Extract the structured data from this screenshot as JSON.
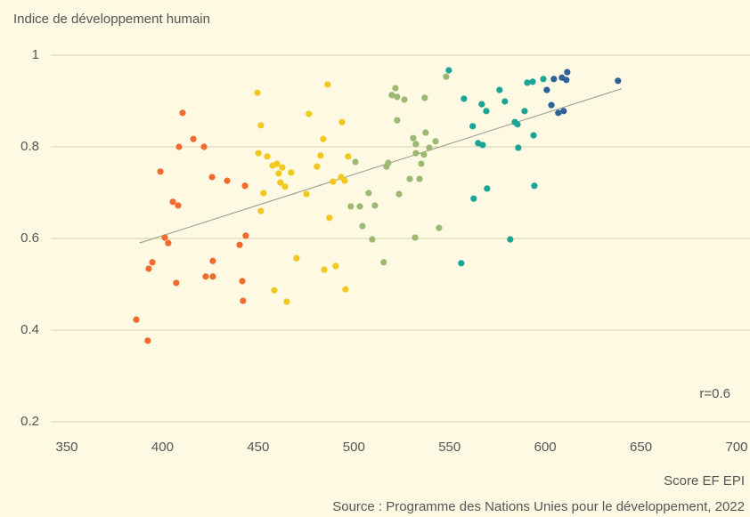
{
  "chart_data": {
    "type": "scatter",
    "title": "Indice de développement humain",
    "x_label": "Score EF EPI",
    "source": "Source : Programme des Nations Unies pour le développement, 2022",
    "annotation": "r=0.6",
    "xlim": [
      350,
      700
    ],
    "ylim": [
      0.2,
      1
    ],
    "xticks": [
      350,
      400,
      450,
      500,
      550,
      600,
      650,
      700
    ],
    "yticks": [
      0.2,
      0.4,
      0.6,
      0.8,
      1
    ],
    "grid": true,
    "trendline": {
      "x": [
        388,
        640
      ],
      "y": [
        0.59,
        0.927
      ],
      "color": "#9a9a8a"
    },
    "series": [
      {
        "color": "#f26b2e",
        "x": [
          386.3,
          392.3,
          392.8,
          394.7,
          398.9,
          401.2,
          403,
          405.4,
          407.2,
          408.2,
          408.6,
          410.5,
          416.1,
          421.7,
          422.6,
          425.9,
          426.3,
          426.3,
          433.8,
          440.3,
          441.7,
          442.1,
          443.1,
          443.5
        ],
        "values": [
          0.423,
          0.377,
          0.534,
          0.548,
          0.746,
          0.602,
          0.59,
          0.68,
          0.503,
          0.672,
          0.8,
          0.874,
          0.817,
          0.8,
          0.517,
          0.734,
          0.551,
          0.517,
          0.726,
          0.586,
          0.507,
          0.464,
          0.715,
          0.606
        ]
      },
      {
        "color": "#f2c81e",
        "x": [
          449.6,
          450.1,
          451.4,
          451.4,
          452.8,
          454.7,
          457.5,
          458.4,
          459.8,
          460.7,
          461.6,
          462.6,
          464,
          464.9,
          467.2,
          470,
          475.2,
          476.5,
          480.7,
          482.6,
          484,
          484.5,
          486.3,
          487.2,
          489.1,
          490.5,
          493.3,
          493.8,
          495.2,
          495.6,
          497
        ],
        "values": [
          0.918,
          0.786,
          0.847,
          0.66,
          0.699,
          0.779,
          0.759,
          0.487,
          0.763,
          0.742,
          0.722,
          0.755,
          0.713,
          0.462,
          0.744,
          0.557,
          0.697,
          0.872,
          0.757,
          0.781,
          0.817,
          0.532,
          0.936,
          0.645,
          0.724,
          0.54,
          0.734,
          0.854,
          0.726,
          0.489,
          0.779
        ]
      },
      {
        "color": "#9cb873",
        "x": [
          500.8,
          498.4,
          503.1,
          504.5,
          507.7,
          509.6,
          511,
          515.6,
          517,
          518,
          519.8,
          521.7,
          522.6,
          522.6,
          523.6,
          526.4,
          529.2,
          531,
          532.4,
          532.4,
          532,
          534.3,
          535.2,
          536.6,
          537,
          537.5,
          539.4,
          542.7,
          544.5,
          548.2
        ],
        "values": [
          0.767,
          0.67,
          0.67,
          0.627,
          0.699,
          0.598,
          0.672,
          0.548,
          0.757,
          0.765,
          0.913,
          0.928,
          0.909,
          0.858,
          0.697,
          0.903,
          0.73,
          0.819,
          0.786,
          0.806,
          0.602,
          0.73,
          0.763,
          0.783,
          0.907,
          0.831,
          0.798,
          0.812,
          0.623,
          0.953
        ]
      },
      {
        "color": "#1aa596",
        "x": [
          549.6,
          556.1,
          557.5,
          562.1,
          562.6,
          564.9,
          566.8,
          567.3,
          569.2,
          569.6,
          576.1,
          578.9,
          581.7,
          584.1,
          585.5,
          585.9,
          589.2,
          590.6,
          593.4,
          593.9,
          594.3,
          599
        ],
        "values": [
          0.967,
          0.546,
          0.905,
          0.845,
          0.687,
          0.808,
          0.893,
          0.804,
          0.878,
          0.709,
          0.924,
          0.899,
          0.598,
          0.854,
          0.849,
          0.798,
          0.878,
          0.94,
          0.942,
          0.825,
          0.715,
          0.948
        ]
      },
      {
        "color": "#2d6197",
        "x": [
          600.8,
          603.2,
          604.5,
          606.8,
          608.7,
          609.6,
          611,
          611.5,
          638
        ],
        "values": [
          0.924,
          0.891,
          0.948,
          0.874,
          0.951,
          0.878,
          0.946,
          0.963,
          0.944
        ]
      }
    ]
  }
}
